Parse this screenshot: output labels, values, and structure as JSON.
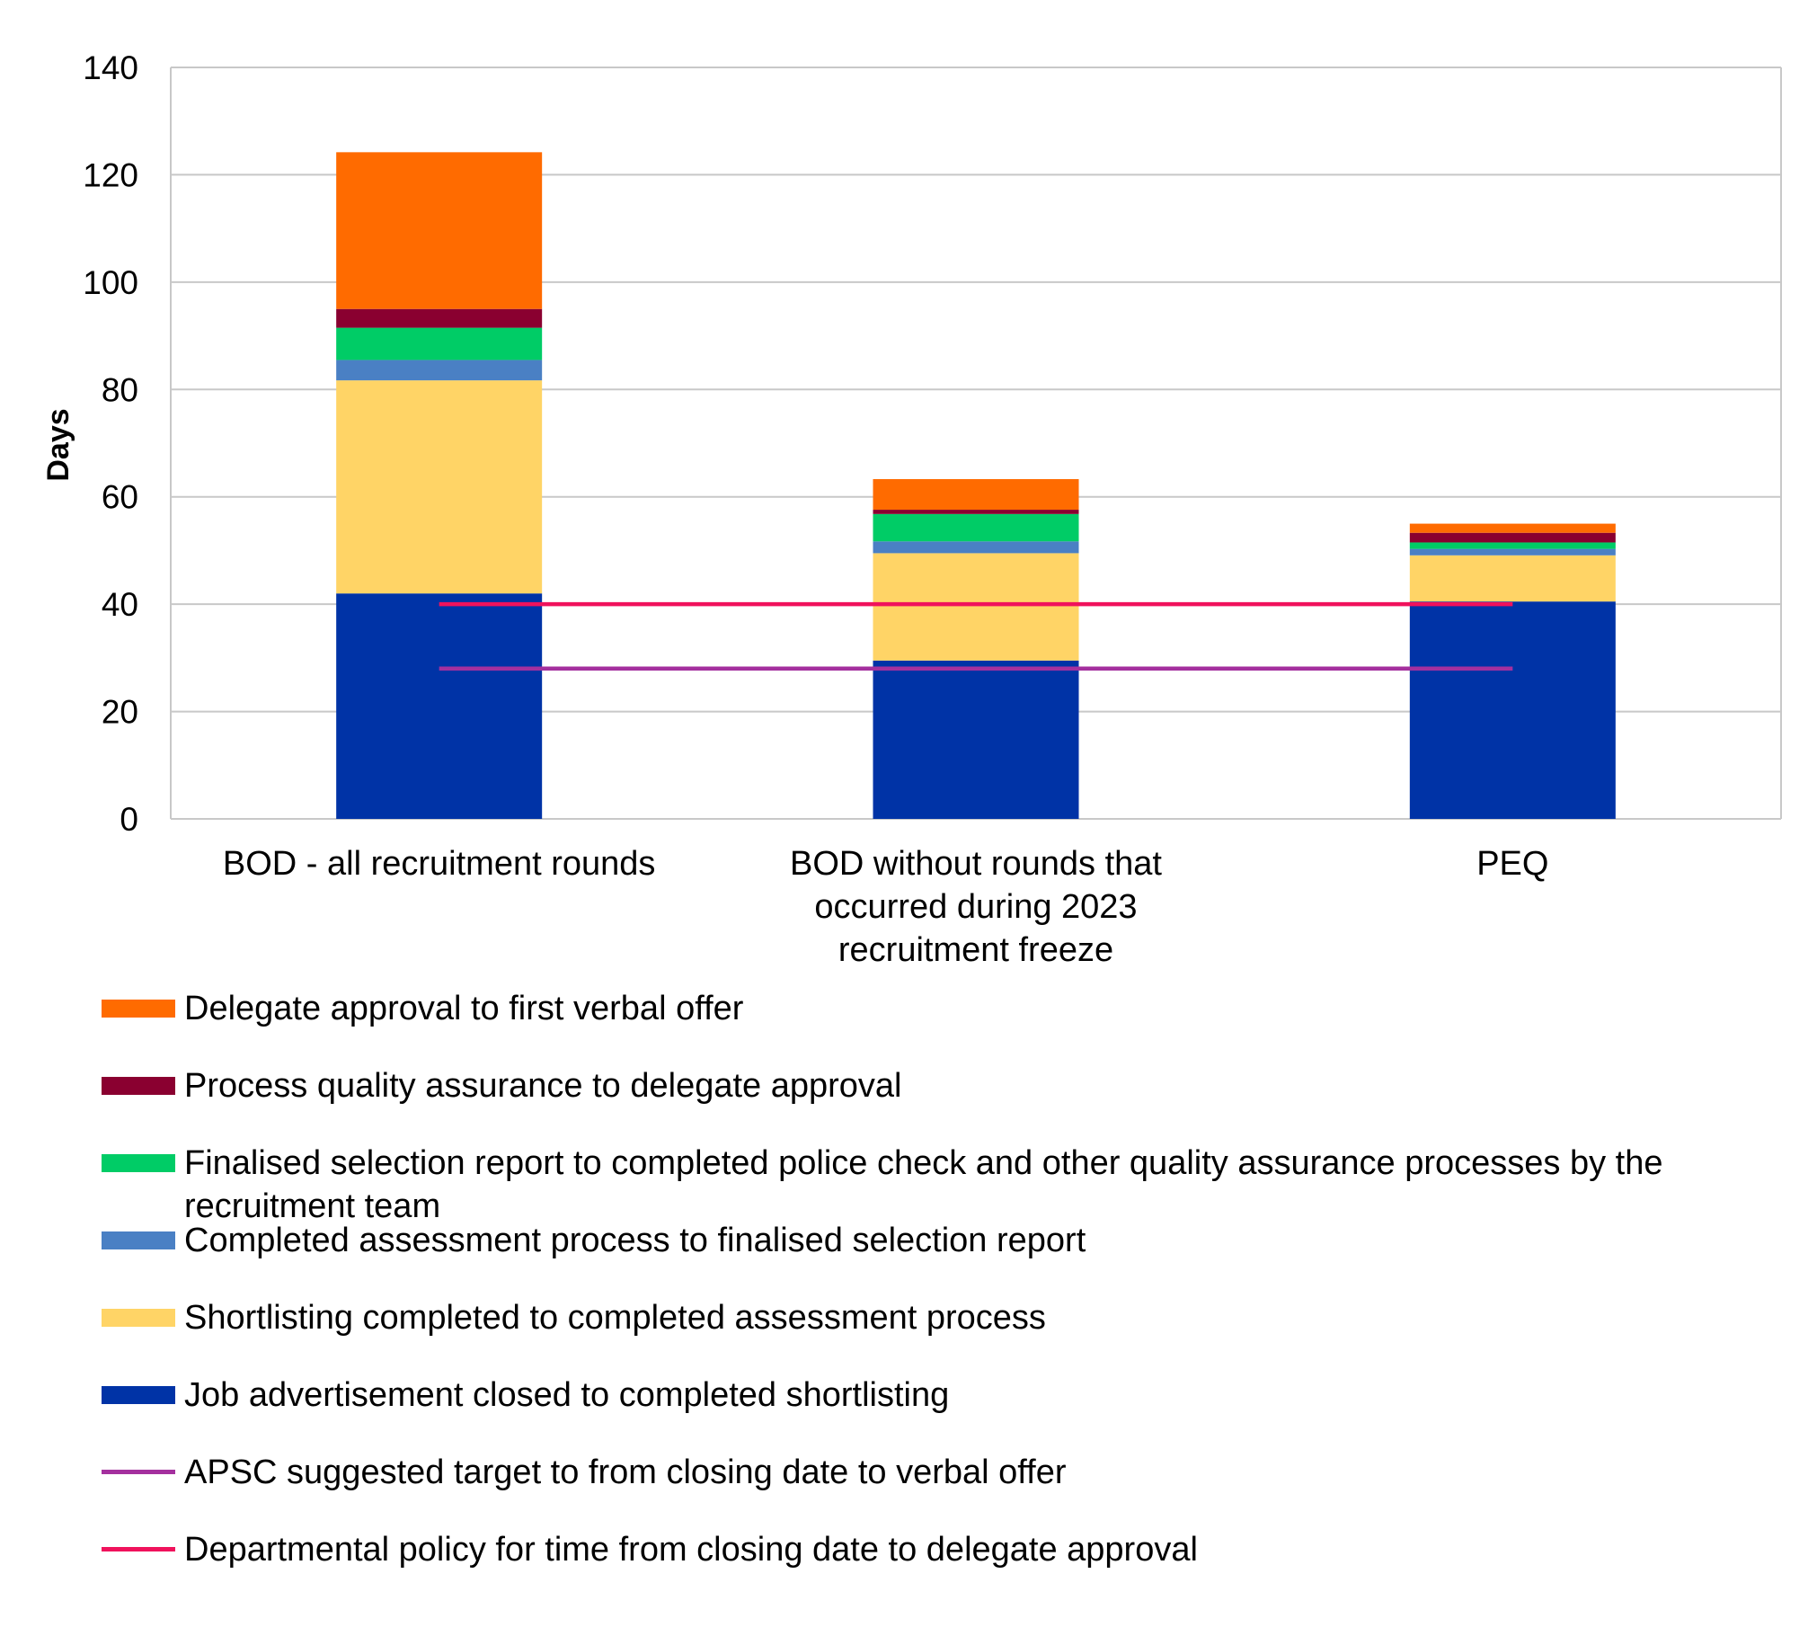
{
  "chart_data": {
    "type": "bar",
    "stacked": true,
    "ylabel": "Days",
    "ylim": [
      0,
      140
    ],
    "yticks": [
      "0",
      "20",
      "40",
      "60",
      "80",
      "100",
      "120",
      "140"
    ],
    "categories": [
      [
        "BOD - all recruitment rounds"
      ],
      [
        "BOD without rounds that",
        "occurred during 2023",
        "recruitment freeze"
      ],
      [
        "PEQ"
      ]
    ],
    "series": [
      {
        "name": "Job advertisement closed to completed shortlisting",
        "color": "#0033A6",
        "values": [
          42,
          29.5,
          40.5
        ]
      },
      {
        "name": "Shortlisting completed to completed assessment process",
        "color": "#FFD466",
        "values": [
          39.7,
          20,
          8.6
        ]
      },
      {
        "name": "Completed assessment process to finalised selection report",
        "color": "#4A80C4",
        "values": [
          3.8,
          2.2,
          1.2
        ]
      },
      {
        "name": "Finalised selection report to completed police check and other quality assurance processes by the recruitment team",
        "color": "#00CC66",
        "values": [
          6,
          5.1,
          1.2
        ]
      },
      {
        "name": "Process quality assurance to delegate approval",
        "color": "#8A0030",
        "values": [
          3.5,
          0.8,
          1.8
        ]
      },
      {
        "name": "Delegate approval to first verbal offer",
        "color": "#FF6B00",
        "values": [
          29.2,
          5.7,
          1.7
        ]
      }
    ],
    "reference_lines": [
      {
        "name": "APSC suggested target to from closing date to verbal offer",
        "color": "#A4309E",
        "value": 28
      },
      {
        "name": "Departmental policy for time from closing date to delegate approval",
        "color": "#F0125C",
        "value": 40
      }
    ],
    "legend_position": "bottom",
    "grid": true
  },
  "legend": {
    "items": [
      {
        "label": "Delegate approval to first verbal offer",
        "color": "#FF6B00",
        "kind": "box"
      },
      {
        "label": "Process quality assurance to delegate approval",
        "color": "#8A0030",
        "kind": "box"
      },
      {
        "label": "Finalised selection report to completed police check and other quality assurance processes by the recruitment team",
        "color": "#00CC66",
        "kind": "box"
      },
      {
        "label": "Completed assessment process to finalised selection report",
        "color": "#4A80C4",
        "kind": "box"
      },
      {
        "label": "Shortlisting completed to completed assessment process",
        "color": "#FFD466",
        "kind": "box"
      },
      {
        "label": "Job advertisement closed to completed shortlisting",
        "color": "#0033A6",
        "kind": "box"
      },
      {
        "label": "APSC suggested target to from closing date to verbal offer",
        "color": "#A4309E",
        "kind": "line"
      },
      {
        "label": "Departmental policy for time from closing date to delegate approval",
        "color": "#F0125C",
        "kind": "line"
      }
    ]
  }
}
